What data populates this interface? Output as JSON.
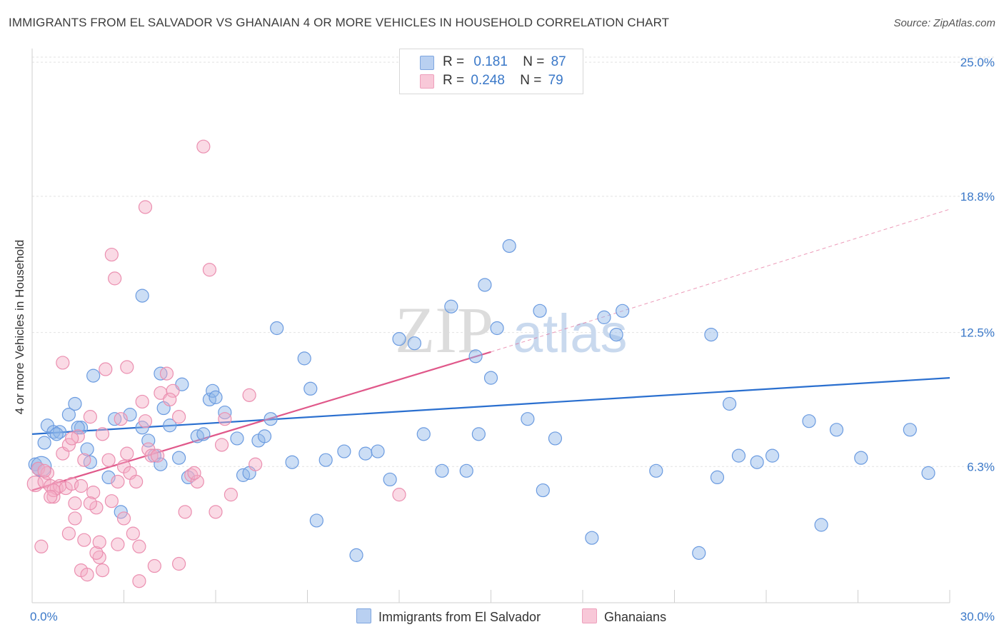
{
  "title": "IMMIGRANTS FROM EL SALVADOR VS GHANAIAN 4 OR MORE VEHICLES IN HOUSEHOLD CORRELATION CHART",
  "source": "Source: ZipAtlas.com",
  "watermark": {
    "zip": "ZIP",
    "atlas": "atlas"
  },
  "legend": {
    "rows": [
      {
        "r_label": "R =",
        "r_value": "0.181",
        "n_label": "N =",
        "n_value": "87"
      },
      {
        "r_label": "R =",
        "r_value": "0.248",
        "n_label": "N =",
        "n_value": "79"
      }
    ]
  },
  "chart_data": {
    "type": "scatter",
    "title": "IMMIGRANTS FROM EL SALVADOR VS GHANAIAN 4 OR MORE VEHICLES IN HOUSEHOLD CORRELATION CHART",
    "xlabel": "",
    "ylabel": "4 or more Vehicles in Household",
    "xlim": [
      0,
      30
    ],
    "ylim": [
      0,
      25.5
    ],
    "x_tick_labels": [
      {
        "value": 0,
        "label": "0.0%"
      },
      {
        "value": 30,
        "label": "30.0%"
      }
    ],
    "y_tick_labels": [
      {
        "value": 6.3,
        "label": "6.3%"
      },
      {
        "value": 12.5,
        "label": "12.5%"
      },
      {
        "value": 18.8,
        "label": "18.8%"
      },
      {
        "value": 25.0,
        "label": "25.0%"
      }
    ],
    "grid": true,
    "legend_position": "top-center",
    "series": [
      {
        "name": "Immigrants from El Salvador",
        "color": "#8fb5e8",
        "stroke": "#6b9be0",
        "trend_color": "#2a6fcf",
        "r": 0.181,
        "n": 87,
        "trend": {
          "x": [
            0,
            30
          ],
          "y": [
            7.8,
            10.4
          ]
        },
        "x": [
          0.1,
          0.2,
          0.4,
          0.5,
          0.7,
          0.9,
          1.2,
          1.4,
          1.6,
          1.8,
          2.0,
          2.5,
          2.7,
          3.2,
          3.6,
          3.8,
          4.0,
          4.2,
          4.2,
          4.3,
          4.5,
          4.8,
          5.1,
          5.4,
          5.6,
          5.8,
          5.9,
          6.0,
          6.3,
          6.7,
          6.9,
          7.1,
          7.4,
          7.6,
          7.8,
          8.5,
          8.9,
          9.1,
          9.3,
          9.6,
          10.2,
          10.6,
          10.9,
          11.3,
          11.7,
          12.0,
          12.5,
          12.8,
          13.4,
          13.7,
          14.2,
          14.5,
          14.6,
          14.8,
          15.2,
          15.6,
          16.2,
          16.6,
          16.7,
          17.1,
          18.3,
          18.7,
          19.1,
          19.3,
          20.4,
          21.8,
          22.2,
          22.8,
          23.7,
          24.2,
          25.4,
          25.8,
          26.3,
          27.1,
          28.7,
          29.3,
          23.1,
          22.4,
          15.0,
          8.0,
          4.9,
          3.6,
          2.9,
          1.9,
          1.5,
          0.8,
          0.3
        ],
        "y": [
          6.4,
          6.2,
          7.4,
          8.2,
          7.9,
          7.9,
          8.7,
          9.2,
          8.1,
          7.1,
          10.5,
          5.8,
          8.5,
          8.7,
          8.1,
          7.5,
          6.8,
          6.4,
          10.6,
          9.0,
          8.2,
          6.7,
          5.8,
          7.7,
          7.8,
          9.4,
          9.8,
          9.5,
          8.8,
          7.6,
          5.9,
          6.0,
          7.5,
          7.7,
          8.5,
          6.5,
          11.3,
          9.9,
          3.8,
          6.6,
          7.0,
          2.2,
          6.9,
          7.0,
          5.7,
          12.2,
          12.0,
          7.8,
          6.1,
          13.7,
          6.1,
          11.4,
          7.8,
          14.7,
          12.7,
          16.5,
          8.5,
          13.5,
          5.2,
          7.6,
          3.0,
          13.2,
          12.4,
          13.5,
          6.1,
          2.3,
          12.4,
          9.2,
          6.5,
          6.8,
          8.4,
          3.6,
          8.0,
          6.7,
          8.0,
          6.0,
          6.8,
          5.8,
          10.4,
          12.7,
          10.1,
          14.2,
          4.2,
          6.5,
          8.1,
          7.8,
          6.3
        ]
      },
      {
        "name": "Ghanaians",
        "color": "#f4aec5",
        "stroke": "#eb8fb0",
        "trend_color": "#e0588a",
        "r": 0.248,
        "n": 79,
        "trend": {
          "x": [
            0,
            15
          ],
          "y": [
            5.2,
            11.6
          ]
        },
        "trend_dashed": {
          "x": [
            15,
            30
          ],
          "y": [
            11.6,
            18.2
          ]
        },
        "x": [
          0.1,
          0.2,
          0.3,
          0.4,
          0.5,
          0.6,
          0.7,
          0.8,
          0.9,
          1.0,
          1.1,
          1.2,
          1.3,
          1.4,
          1.5,
          1.6,
          1.7,
          1.8,
          1.9,
          2.0,
          2.1,
          2.2,
          2.3,
          2.4,
          2.5,
          2.6,
          2.7,
          2.8,
          2.9,
          3.0,
          3.1,
          3.2,
          3.3,
          3.4,
          3.5,
          3.6,
          3.7,
          3.8,
          3.9,
          4.0,
          4.2,
          4.4,
          4.6,
          4.8,
          5.0,
          5.2,
          5.4,
          5.6,
          5.8,
          6.0,
          6.2,
          6.5,
          7.1,
          7.3,
          12.0,
          1.3,
          1.6,
          1.9,
          2.3,
          2.8,
          3.1,
          3.7,
          4.1,
          4.5,
          5.3,
          6.3,
          0.7,
          1.0,
          1.4,
          1.7,
          2.1,
          2.6,
          3.0,
          3.5,
          4.8,
          0.4,
          0.6,
          1.2,
          2.2
        ],
        "y": [
          5.5,
          6.2,
          2.6,
          5.6,
          6.0,
          5.4,
          4.9,
          5.3,
          5.4,
          6.9,
          5.3,
          7.3,
          5.5,
          4.6,
          7.7,
          1.5,
          6.6,
          1.3,
          8.6,
          5.1,
          4.4,
          2.1,
          7.8,
          10.8,
          6.6,
          16.1,
          15.0,
          5.6,
          8.5,
          6.3,
          6.9,
          6.0,
          3.2,
          5.6,
          2.6,
          9.3,
          18.3,
          7.1,
          6.8,
          1.7,
          9.7,
          10.6,
          9.8,
          8.6,
          4.2,
          5.9,
          5.6,
          21.1,
          15.4,
          4.2,
          7.3,
          5.0,
          9.6,
          6.4,
          5.0,
          7.6,
          5.4,
          4.6,
          1.5,
          2.7,
          10.9,
          8.4,
          6.8,
          9.4,
          6.0,
          8.5,
          5.2,
          11.1,
          3.9,
          2.9,
          2.3,
          4.7,
          3.9,
          1.0,
          1.8,
          6.1,
          4.9,
          3.2,
          2.8
        ]
      }
    ]
  }
}
